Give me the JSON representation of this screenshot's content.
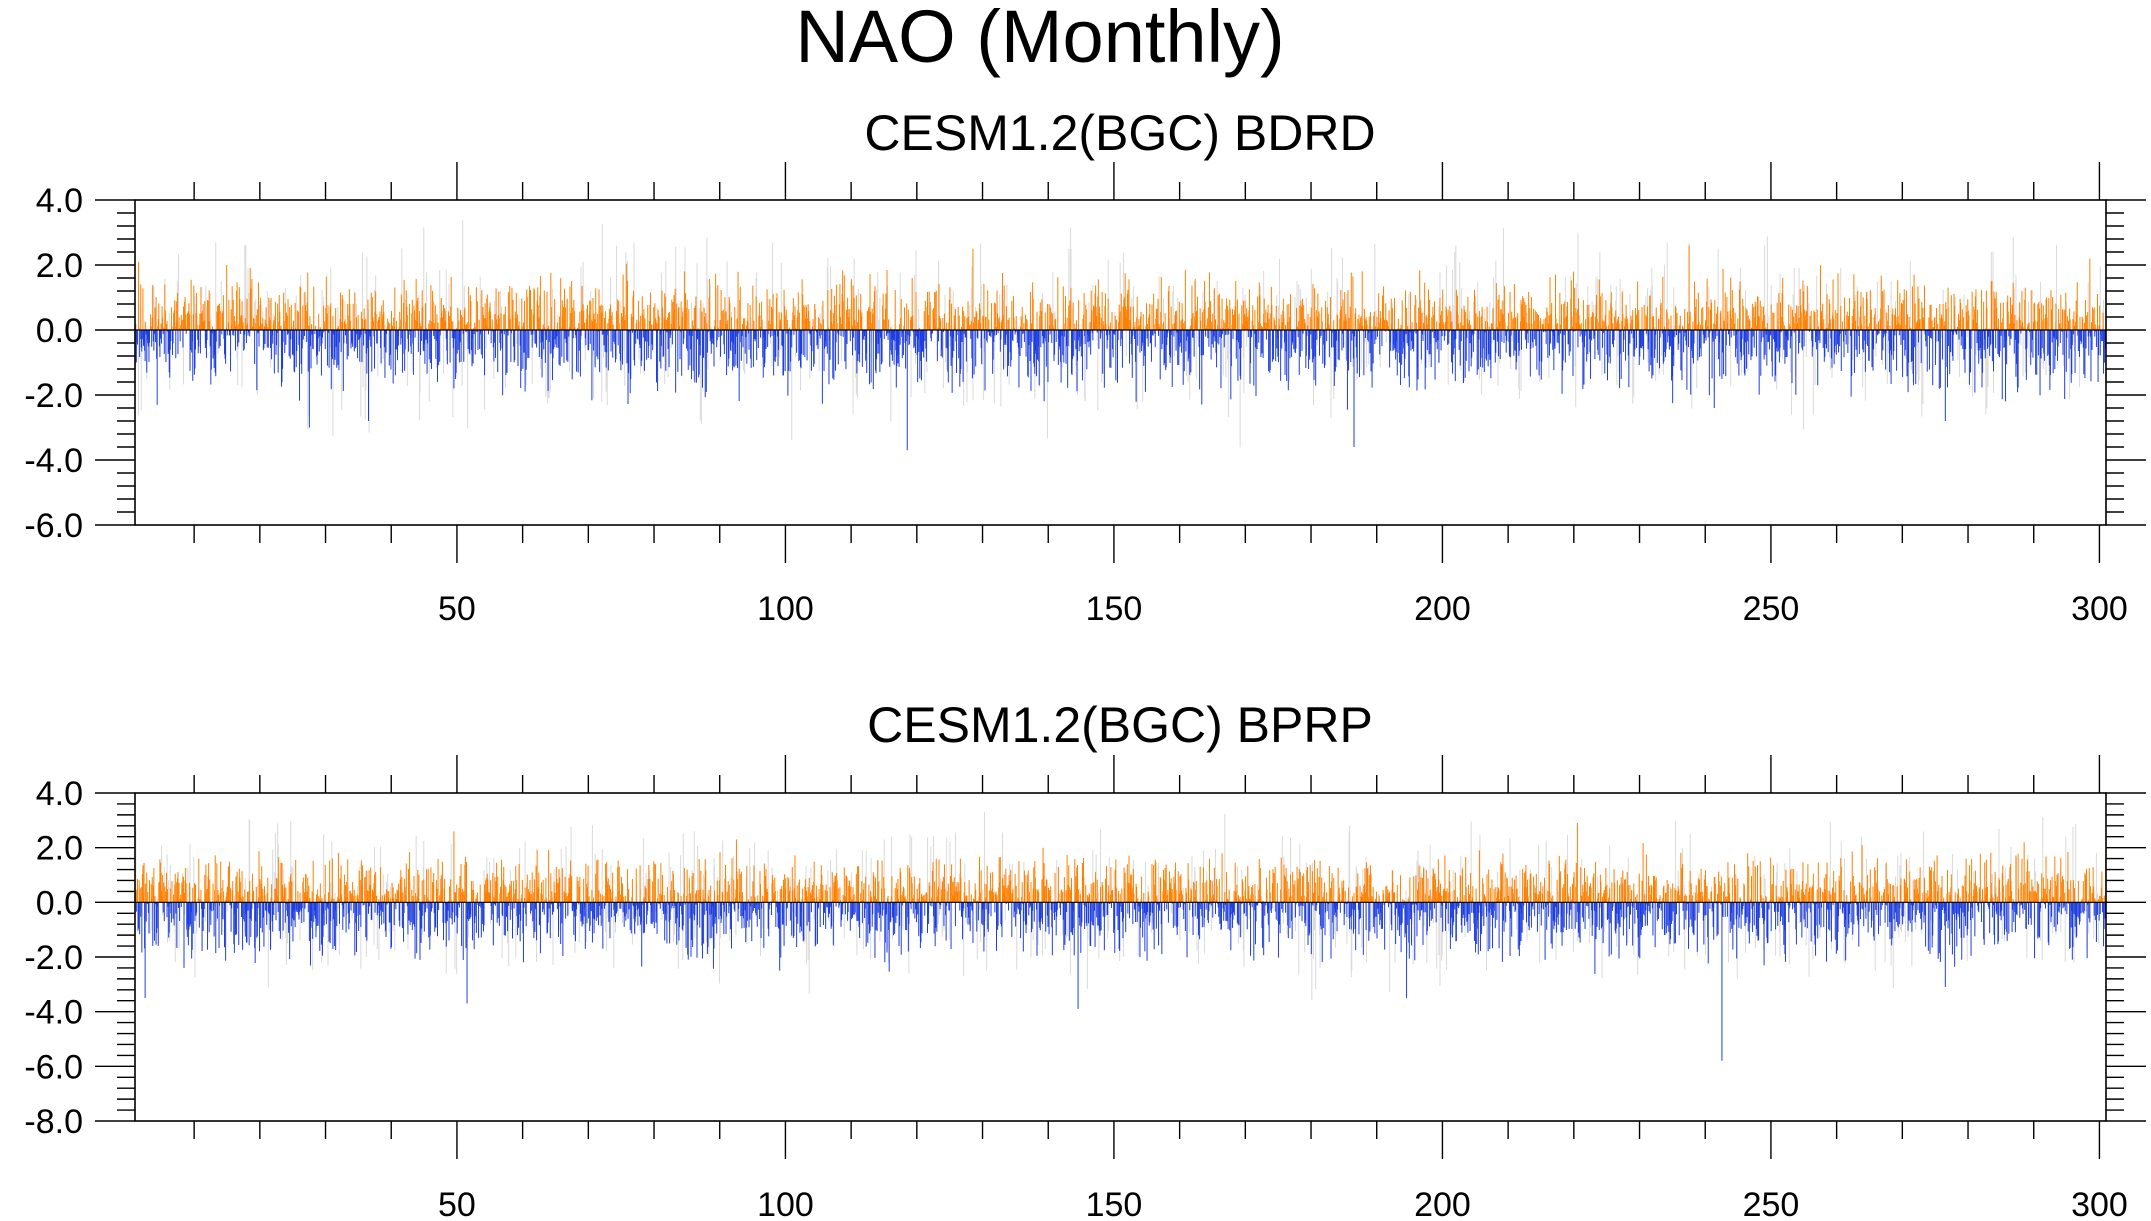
{
  "page": {
    "title": "NAO (Monthly)"
  },
  "colors": {
    "positive": "#ff8000",
    "negative": "#1f3fe0",
    "ghost": "#d9d9d9"
  },
  "chart_data": [
    {
      "type": "bar",
      "title": "CESM1.2(BGC) BDRD",
      "xlabel": "",
      "ylabel": "",
      "xlim": [
        1,
        301
      ],
      "ylim": [
        -6.0,
        4.0
      ],
      "baseline": 0.0,
      "samples_per_year": 12,
      "xticks": [
        "50",
        "100",
        "150",
        "200",
        "250",
        "300"
      ],
      "xtick_values": [
        50,
        100,
        150,
        200,
        250,
        300
      ],
      "yticks": [
        "4.0",
        "2.0",
        "0.0",
        "-2.0",
        "-4.0",
        "-6.0"
      ],
      "ytick_values": [
        4.0,
        2.0,
        0.0,
        -2.0,
        -4.0,
        -6.0
      ],
      "notable_values": [
        {
          "x": 1.5,
          "value": 2.1
        },
        {
          "x": 18.5,
          "value": 1.9
        },
        {
          "x": 27.5,
          "value": -3.0
        },
        {
          "x": 36.5,
          "value": -2.8
        },
        {
          "x": 118.5,
          "value": -3.7
        },
        {
          "x": 128.5,
          "value": 2.5
        },
        {
          "x": 186.5,
          "value": -3.6
        },
        {
          "x": 237.5,
          "value": 2.6
        },
        {
          "x": 276.5,
          "value": -2.8
        },
        {
          "x": 298.5,
          "value": 2.2
        }
      ],
      "noise_amplitude": {
        "positive": 1.0,
        "negative": 1.2
      },
      "seed": 11
    },
    {
      "type": "bar",
      "title": "CESM1.2(BGC) BPRP",
      "xlabel": "",
      "ylabel": "",
      "xlim": [
        1,
        301
      ],
      "ylim": [
        -8.0,
        4.0
      ],
      "baseline": 0.0,
      "samples_per_year": 12,
      "xticks": [
        "50",
        "100",
        "150",
        "200",
        "250",
        "300"
      ],
      "xtick_values": [
        50,
        100,
        150,
        200,
        250,
        300
      ],
      "yticks": [
        "4.0",
        "2.0",
        "0.0",
        "-2.0",
        "-4.0",
        "-6.0",
        "-8.0"
      ],
      "ytick_values": [
        4.0,
        2.0,
        0.0,
        -2.0,
        -4.0,
        -6.0,
        -8.0
      ],
      "notable_values": [
        {
          "x": 2.5,
          "value": -3.5
        },
        {
          "x": 49.5,
          "value": 2.6
        },
        {
          "x": 51.5,
          "value": -3.7
        },
        {
          "x": 92.5,
          "value": 2.3
        },
        {
          "x": 144.5,
          "value": -3.9
        },
        {
          "x": 194.5,
          "value": -3.5
        },
        {
          "x": 220.5,
          "value": 2.9
        },
        {
          "x": 242.5,
          "value": -5.8
        },
        {
          "x": 276.5,
          "value": -3.1
        },
        {
          "x": 288.5,
          "value": 2.2
        }
      ],
      "noise_amplitude": {
        "positive": 1.1,
        "negative": 1.3
      },
      "seed": 29
    }
  ]
}
